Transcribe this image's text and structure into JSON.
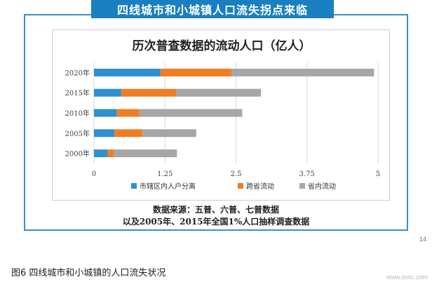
{
  "banner": {
    "title": "四线城市和小城镇人口流失拐点来临"
  },
  "chart_data": {
    "type": "bar",
    "orientation": "horizontal",
    "stacked": true,
    "title": "历次普查数据的流动人口（亿人）",
    "categories": [
      "2020年",
      "2015年",
      "2010年",
      "2005年",
      "2000年"
    ],
    "series": [
      {
        "name": "市辖区内人户分离",
        "color": "#2e8fd1",
        "values": [
          1.17,
          0.48,
          0.4,
          0.36,
          0.24
        ]
      },
      {
        "name": "跨省流动",
        "color": "#ef7d23",
        "values": [
          1.25,
          0.97,
          0.4,
          0.49,
          0.11
        ]
      },
      {
        "name": "省内流动",
        "color": "#a6a6a6",
        "values": [
          2.51,
          1.49,
          1.81,
          0.95,
          1.11
        ]
      }
    ],
    "xticks": [
      "0",
      "1.25",
      "2.5",
      "3.75",
      "5"
    ],
    "xlim": [
      0,
      5
    ],
    "grid": "vertical",
    "legend_position": "bottom"
  },
  "source": {
    "line1": "数据来源：五普、六普、七普数据",
    "line2": "以及2005年、2015年全国1%人口抽样调查数据"
  },
  "page_number": "14",
  "caption": "图6 四线城市和小城镇的人口流失状况",
  "watermark": "www.sssc.com"
}
